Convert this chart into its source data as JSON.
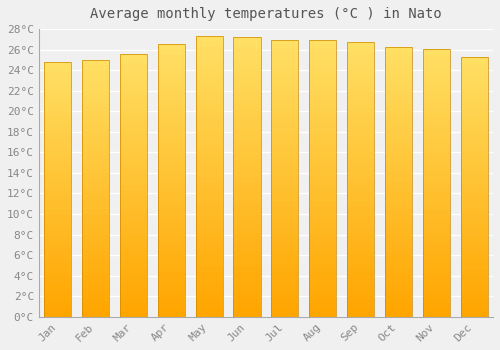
{
  "months": [
    "Jan",
    "Feb",
    "Mar",
    "Apr",
    "May",
    "Jun",
    "Jul",
    "Aug",
    "Sep",
    "Oct",
    "Nov",
    "Dec"
  ],
  "values": [
    24.8,
    25.0,
    25.6,
    26.5,
    27.3,
    27.2,
    26.9,
    26.9,
    26.7,
    26.3,
    26.1,
    25.3
  ],
  "bar_color_bottom": "#FFA500",
  "bar_color_top": "#FFE066",
  "bar_edge_color": "#CC8800",
  "title": "Average monthly temperatures (°C ) in Nato",
  "ylim": [
    0,
    28
  ],
  "ytick_step": 2,
  "background_color": "#f0f0f0",
  "grid_color": "#ffffff",
  "title_fontsize": 10,
  "tick_fontsize": 8
}
